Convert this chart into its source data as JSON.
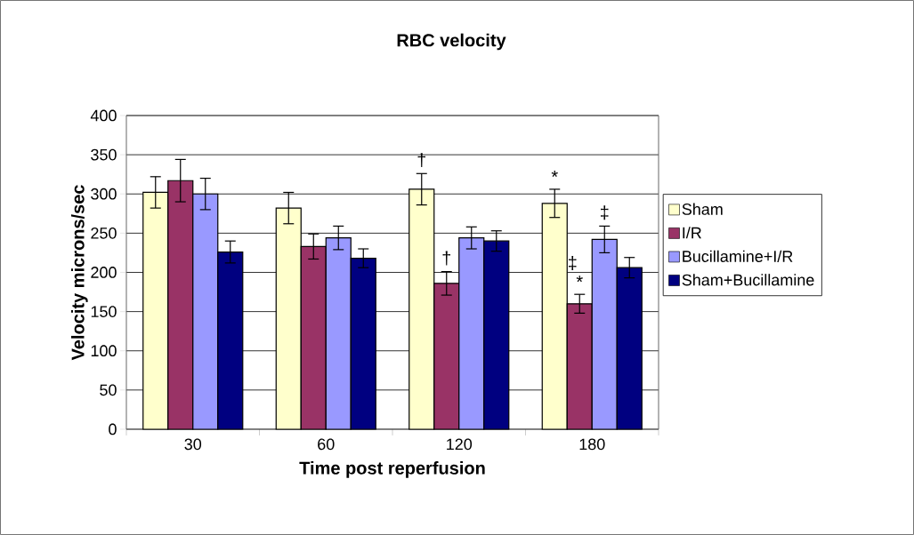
{
  "chart_data": {
    "type": "bar",
    "title": "RBC velocity",
    "xlabel": "Time post reperfusion",
    "ylabel": "Velocity microns/sec",
    "categories": [
      "30",
      "60",
      "120",
      "180"
    ],
    "series": [
      {
        "name": "Sham",
        "color": "#ffffcc",
        "values": [
          302,
          282,
          306,
          288
        ],
        "errors": [
          20,
          20,
          20,
          18
        ]
      },
      {
        "name": "I/R",
        "color": "#993366",
        "values": [
          317,
          233,
          186,
          160
        ],
        "errors": [
          27,
          16,
          15,
          12
        ]
      },
      {
        "name": "Bucillamine+I/R",
        "color": "#9999ff",
        "values": [
          300,
          244,
          244,
          242
        ],
        "errors": [
          20,
          15,
          14,
          17
        ]
      },
      {
        "name": "Sham+Bucillamine",
        "color": "#000080",
        "values": [
          226,
          218,
          240,
          206
        ],
        "errors": [
          14,
          12,
          13,
          13
        ]
      }
    ],
    "ylim": [
      0,
      400
    ],
    "yticks": [
      0,
      50,
      100,
      150,
      200,
      250,
      300,
      350,
      400
    ],
    "grid": "y",
    "legend": "right",
    "annotations": [
      "†",
      "†",
      "*",
      "*",
      "‡",
      "‡"
    ]
  }
}
